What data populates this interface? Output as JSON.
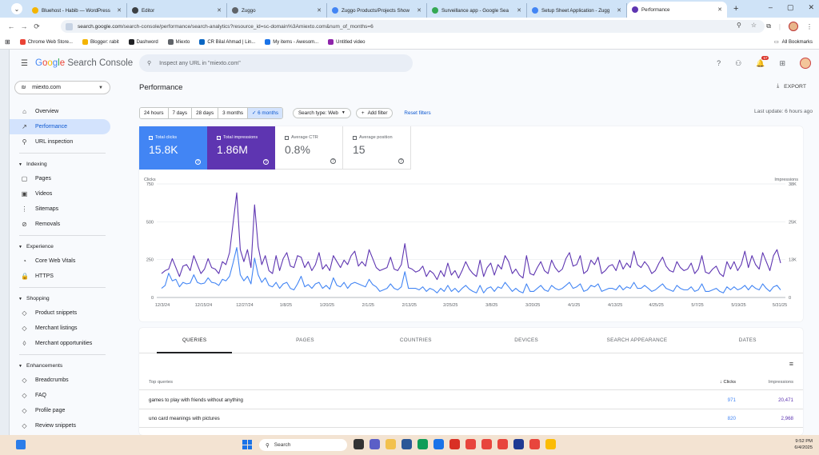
{
  "browser": {
    "tabs": [
      {
        "label": "Bluehost - Habib — WordPress",
        "color": "#f4b400",
        "active": false
      },
      {
        "label": "Editor",
        "color": "#3c4043",
        "active": false
      },
      {
        "label": "Zuggo",
        "color": "#5f6368",
        "active": false
      },
      {
        "label": "Zuggo Products/Projects Show",
        "color": "#4285f4",
        "active": false
      },
      {
        "label": "Surveillance app - Google Sea",
        "color": "#34a853",
        "active": false
      },
      {
        "label": "Setup Sheet Application - Zugg",
        "color": "#4285f4",
        "active": false
      },
      {
        "label": "Performance",
        "color": "#5e35b1",
        "active": true
      }
    ],
    "url_host": "search.google.com",
    "url_path": "/search-console/performance/search-analytics?resource_id=sc-domain%3Amiexto.com&num_of_months=6",
    "bookmarks": [
      {
        "label": "Chrome Web Store...",
        "color": "#ea4335"
      },
      {
        "label": "Blogger: rabit",
        "color": "#f4b400"
      },
      {
        "label": "Dashword",
        "color": "#202124"
      },
      {
        "label": "Miexto",
        "color": "#5f6368"
      },
      {
        "label": "CR Bilal Ahmad | Lin...",
        "color": "#0a66c2"
      },
      {
        "label": "My items - Awesom...",
        "color": "#1a73e8"
      },
      {
        "label": "Untitled video",
        "color": "#8e24aa"
      }
    ],
    "all_bookmarks": "All Bookmarks"
  },
  "header": {
    "product": "Search Console",
    "search_placeholder": "Inspect any URL in \"miexto.com\"",
    "notif_count": "57"
  },
  "sidebar": {
    "property": "miexto.com",
    "items": [
      {
        "label": "Overview",
        "icon": "home-icon",
        "glyph": "⌂",
        "active": false
      },
      {
        "label": "Performance",
        "icon": "trending-icon",
        "glyph": "↗",
        "active": true
      },
      {
        "label": "URL inspection",
        "icon": "search-icon",
        "glyph": "⚲",
        "active": false
      }
    ],
    "sections": [
      {
        "title": "Indexing",
        "items": [
          {
            "label": "Pages",
            "icon": "pages-icon",
            "glyph": "▢"
          },
          {
            "label": "Videos",
            "icon": "video-icon",
            "glyph": "▣"
          },
          {
            "label": "Sitemaps",
            "icon": "sitemap-icon",
            "glyph": "⋮"
          },
          {
            "label": "Removals",
            "icon": "removals-icon",
            "glyph": "⊘"
          }
        ]
      },
      {
        "title": "Experience",
        "items": [
          {
            "label": "Core Web Vitals",
            "icon": "gauge-icon",
            "glyph": "◔"
          },
          {
            "label": "HTTPS",
            "icon": "lock-icon",
            "glyph": "🔒"
          }
        ]
      },
      {
        "title": "Shopping",
        "items": [
          {
            "label": "Product snippets",
            "icon": "diamond-icon",
            "glyph": "◇"
          },
          {
            "label": "Merchant listings",
            "icon": "diamond-icon",
            "glyph": "◇"
          },
          {
            "label": "Merchant opportunities",
            "icon": "tag-icon",
            "glyph": "◊"
          }
        ]
      },
      {
        "title": "Enhancements",
        "items": [
          {
            "label": "Breadcrumbs",
            "icon": "diamond-icon",
            "glyph": "◇"
          },
          {
            "label": "FAQ",
            "icon": "diamond-icon",
            "glyph": "◇"
          },
          {
            "label": "Profile page",
            "icon": "diamond-icon",
            "glyph": "◇"
          },
          {
            "label": "Review snippets",
            "icon": "diamond-icon",
            "glyph": "◇"
          }
        ]
      }
    ]
  },
  "main": {
    "title": "Performance",
    "export_label": "EXPORT",
    "date_ranges": [
      "24 hours",
      "7 days",
      "28 days",
      "3 months",
      "6 months"
    ],
    "selected_range": "6 months",
    "search_type": "Search type: Web",
    "add_filter": "Add filter",
    "reset_filters": "Reset filters",
    "last_update": "Last update: 6 hours ago",
    "metrics": [
      {
        "label": "Total clicks",
        "value": "15.8K",
        "checked": true,
        "color": "#4285f4"
      },
      {
        "label": "Total impressions",
        "value": "1.86M",
        "checked": true,
        "color": "#5e35b1"
      },
      {
        "label": "Average CTR",
        "value": "0.8%",
        "checked": false
      },
      {
        "label": "Average position",
        "value": "15",
        "checked": false
      }
    ]
  },
  "chart_data": {
    "type": "line",
    "y_left_label": "Clicks",
    "y_right_label": "Impressions",
    "y_left_ticks": [
      "750",
      "500",
      "250",
      "0"
    ],
    "y_right_ticks": [
      "38K",
      "25K",
      "13K",
      "0"
    ],
    "ylim_left": [
      0,
      750
    ],
    "ylim_right": [
      0,
      38000
    ],
    "x_tick_labels": [
      "12/3/24",
      "12/15/24",
      "12/27/24",
      "1/8/25",
      "1/20/25",
      "2/1/25",
      "2/13/25",
      "2/25/25",
      "3/8/25",
      "3/20/25",
      "4/1/25",
      "4/13/25",
      "4/25/25",
      "5/7/25",
      "5/19/25",
      "5/31/25"
    ],
    "grid": true,
    "series": [
      {
        "name": "Clicks",
        "color": "#4285f4",
        "axis": "left",
        "values": [
          60,
          80,
          160,
          110,
          120,
          70,
          100,
          90,
          95,
          150,
          100,
          90,
          95,
          130,
          100,
          95,
          80,
          120,
          110,
          140,
          230,
          330,
          150,
          110,
          140,
          90,
          260,
          150,
          100,
          130,
          80,
          70,
          100,
          60,
          90,
          100,
          60,
          50,
          90,
          140,
          70,
          85,
          60,
          90,
          100,
          60,
          80,
          55,
          130,
          80,
          70,
          100,
          60,
          90,
          100,
          90,
          80,
          70,
          120,
          85,
          70,
          40,
          50,
          60,
          90,
          60,
          50,
          70,
          170,
          60,
          60,
          60,
          50,
          70,
          40,
          60,
          50,
          30,
          60,
          40,
          80,
          40,
          60,
          35,
          60,
          80,
          55,
          40,
          30,
          80,
          30,
          60,
          70,
          40,
          70,
          60,
          100,
          70,
          40,
          60,
          40,
          30,
          90,
          40,
          40,
          60,
          80,
          50,
          40,
          80,
          60,
          50,
          60,
          80,
          100,
          60,
          70,
          90,
          40,
          50,
          80,
          70,
          90,
          40,
          50,
          60,
          60,
          50,
          80,
          50,
          70,
          60,
          100,
          60,
          60,
          80,
          60,
          40,
          50,
          70,
          90,
          60,
          50,
          40,
          80,
          60,
          50,
          50,
          70,
          40,
          50,
          90,
          40,
          40,
          50,
          60,
          40,
          30,
          70,
          50,
          70,
          50,
          60,
          80,
          50,
          80,
          60,
          50,
          90,
          60,
          40,
          70,
          80,
          50
        ]
      },
      {
        "name": "Impressions",
        "color": "#5e35b1",
        "axis": "right",
        "values": [
          8000,
          9000,
          9500,
          13000,
          10000,
          7000,
          10500,
          11000,
          9000,
          14000,
          11000,
          8000,
          9500,
          13000,
          10000,
          9500,
          8000,
          12000,
          11000,
          15000,
          25000,
          35000,
          16000,
          12000,
          16000,
          10000,
          31000,
          17000,
          11000,
          14000,
          9000,
          8000,
          14000,
          9000,
          13000,
          15000,
          10500,
          10000,
          14000,
          13500,
          10000,
          12000,
          9000,
          11000,
          15000,
          9500,
          11000,
          9000,
          14000,
          12000,
          10000,
          12500,
          11000,
          14000,
          15500,
          10500,
          12000,
          10500,
          16000,
          13000,
          10000,
          9000,
          9500,
          10000,
          13500,
          9500,
          9000,
          11000,
          18000,
          10000,
          9500,
          8500,
          9000,
          10500,
          7000,
          9000,
          8000,
          6000,
          9000,
          7000,
          11500,
          7500,
          9000,
          6500,
          9000,
          12000,
          9500,
          8000,
          7000,
          12500,
          7000,
          10000,
          11500,
          7500,
          11000,
          9500,
          14000,
          12000,
          8000,
          9500,
          7500,
          6500,
          14000,
          8000,
          7500,
          10000,
          12000,
          9000,
          8000,
          12500,
          10000,
          8500,
          9500,
          13000,
          15000,
          10500,
          11000,
          14000,
          8000,
          9000,
          12500,
          11000,
          13500,
          8000,
          9000,
          10500,
          11000,
          9000,
          12500,
          9500,
          11500,
          10000,
          15500,
          11000,
          10000,
          12000,
          10500,
          8000,
          9000,
          11500,
          13500,
          10500,
          9000,
          8500,
          12000,
          10000,
          9000,
          9500,
          11500,
          8000,
          9500,
          14000,
          8500,
          8000,
          9500,
          10500,
          8000,
          7000,
          12000,
          9500,
          12000,
          9000,
          11000,
          15500,
          10000,
          14000,
          11000,
          9500,
          15000,
          12000,
          9000,
          14000,
          16000,
          11500
        ]
      }
    ]
  },
  "table": {
    "tabs": [
      "QUERIES",
      "PAGES",
      "COUNTRIES",
      "DEVICES",
      "SEARCH APPEARANCE",
      "DATES"
    ],
    "selected_tab": "QUERIES",
    "header_query": "Top queries",
    "header_clicks": "Clicks",
    "header_impressions": "Impressions",
    "rows": [
      {
        "query": "games to play with friends without anything",
        "clicks": "971",
        "impressions": "20,471"
      },
      {
        "query": "uno card meanings with pictures",
        "clicks": "820",
        "impressions": "2,968"
      }
    ]
  },
  "taskbar": {
    "search_placeholder": "Search",
    "time": "9:52 PM",
    "date": "6/4/2025"
  }
}
